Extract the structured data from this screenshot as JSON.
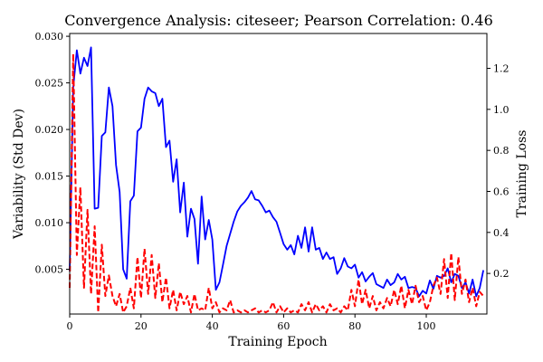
{
  "chart_data": {
    "type": "line",
    "title": "Convergence Analysis: citeseer; Pearson Correlation: 0.46",
    "xlabel": "Training Epoch",
    "ylabel_left": "Variability (Std Dev)",
    "ylabel_right": "Training Loss",
    "xlim": [
      0,
      117
    ],
    "ylim_left": [
      0.0002,
      0.0303
    ],
    "ylim_right": [
      0.002,
      1.37
    ],
    "x_ticks": [
      0,
      20,
      40,
      60,
      80,
      100
    ],
    "y_left_ticks": [
      0.005,
      0.01,
      0.015,
      0.02,
      0.025,
      0.03
    ],
    "y_right_ticks": [
      0.2,
      0.4,
      0.6,
      0.8,
      1.0,
      1.2
    ],
    "grid": false,
    "series": [
      {
        "axis": "left",
        "color": "#0000ff",
        "style": "solid",
        "x": [
          0,
          1,
          2,
          3,
          4,
          5,
          6,
          7,
          8,
          9,
          10,
          11,
          12,
          13,
          14,
          15,
          16,
          17,
          18,
          19,
          20,
          21,
          22,
          23,
          24,
          25,
          26,
          27,
          28,
          29,
          30,
          31,
          32,
          33,
          34,
          35,
          36,
          37,
          38,
          39,
          40,
          41,
          42,
          43,
          44,
          45,
          46,
          47,
          48,
          49,
          50,
          51,
          52,
          53,
          54,
          55,
          56,
          57,
          58,
          59,
          60,
          61,
          62,
          63,
          64,
          65,
          66,
          67,
          68,
          69,
          70,
          71,
          72,
          73,
          74,
          75,
          76,
          77,
          78,
          79,
          80,
          81,
          82,
          83,
          84,
          85,
          86,
          87,
          88,
          89,
          90,
          91,
          92,
          93,
          94,
          95,
          96,
          97,
          98,
          99,
          100,
          101,
          102,
          103,
          104,
          105,
          106,
          107,
          108,
          109,
          110,
          111,
          112,
          113,
          114,
          115,
          116
        ],
        "values": [
          0.0048,
          0.0245,
          0.0285,
          0.026,
          0.0277,
          0.0268,
          0.0288,
          0.0115,
          0.0116,
          0.0193,
          0.0197,
          0.0245,
          0.0225,
          0.0162,
          0.0133,
          0.005,
          0.004,
          0.0123,
          0.0129,
          0.0198,
          0.0202,
          0.0233,
          0.0245,
          0.0241,
          0.0239,
          0.0225,
          0.0233,
          0.0181,
          0.0188,
          0.0144,
          0.0168,
          0.0111,
          0.0143,
          0.0085,
          0.0115,
          0.0104,
          0.0056,
          0.0128,
          0.0082,
          0.0103,
          0.0082,
          0.0028,
          0.0036,
          0.0055,
          0.0075,
          0.0088,
          0.0101,
          0.0112,
          0.0118,
          0.0122,
          0.0127,
          0.0134,
          0.0125,
          0.0124,
          0.0118,
          0.0111,
          0.0113,
          0.0106,
          0.0101,
          0.0089,
          0.0077,
          0.0071,
          0.0076,
          0.0066,
          0.0086,
          0.0073,
          0.0095,
          0.0069,
          0.0095,
          0.0071,
          0.0073,
          0.0061,
          0.0068,
          0.0061,
          0.0063,
          0.0045,
          0.0051,
          0.0062,
          0.0053,
          0.0051,
          0.0055,
          0.0041,
          0.0047,
          0.0037,
          0.0042,
          0.0046,
          0.0034,
          0.0032,
          0.003,
          0.0039,
          0.0033,
          0.0036,
          0.0045,
          0.0039,
          0.0042,
          0.003,
          0.0031,
          0.003,
          0.0021,
          0.0027,
          0.0024,
          0.0038,
          0.0029,
          0.0043,
          0.0041,
          0.0043,
          0.0051,
          0.0036,
          0.0045,
          0.0043,
          0.003,
          0.0036,
          0.0024,
          0.0039,
          0.0021,
          0.003,
          0.0049
        ]
      },
      {
        "axis": "right",
        "color": "#ff0000",
        "style": "dashed",
        "x": [
          0,
          1,
          2,
          3,
          4,
          5,
          6,
          7,
          8,
          9,
          10,
          11,
          12,
          13,
          14,
          15,
          16,
          17,
          18,
          19,
          20,
          21,
          22,
          23,
          24,
          25,
          26,
          27,
          28,
          29,
          30,
          31,
          32,
          33,
          34,
          35,
          36,
          37,
          38,
          39,
          40,
          41,
          42,
          43,
          44,
          45,
          46,
          47,
          48,
          49,
          50,
          51,
          52,
          53,
          54,
          55,
          56,
          57,
          58,
          59,
          60,
          61,
          62,
          63,
          64,
          65,
          66,
          67,
          68,
          69,
          70,
          71,
          72,
          73,
          74,
          75,
          76,
          77,
          78,
          79,
          80,
          81,
          82,
          83,
          84,
          85,
          86,
          87,
          88,
          89,
          90,
          91,
          92,
          93,
          94,
          95,
          96,
          97,
          98,
          99,
          100,
          101,
          102,
          103,
          104,
          105,
          106,
          107,
          108,
          109,
          110,
          111,
          112,
          113,
          114,
          115,
          116
        ],
        "values": [
          0.13,
          1.27,
          0.29,
          0.62,
          0.13,
          0.51,
          0.1,
          0.43,
          0.01,
          0.34,
          0.09,
          0.19,
          0.09,
          0.04,
          0.1,
          0.01,
          0.04,
          0.13,
          0.03,
          0.28,
          0.08,
          0.32,
          0.1,
          0.29,
          0.08,
          0.25,
          0.06,
          0.18,
          0.03,
          0.12,
          0.02,
          0.11,
          0.05,
          0.09,
          0.01,
          0.1,
          0.02,
          0.03,
          0.02,
          0.13,
          0.03,
          0.06,
          0.01,
          0.03,
          0.02,
          0.07,
          0.01,
          0.02,
          0.01,
          0.02,
          0.01,
          0.02,
          0.03,
          0.01,
          0.02,
          0.01,
          0.02,
          0.06,
          0.01,
          0.04,
          0.01,
          0.03,
          0.01,
          0.02,
          0.01,
          0.05,
          0.02,
          0.06,
          0.01,
          0.05,
          0.02,
          0.04,
          0.01,
          0.05,
          0.02,
          0.03,
          0.01,
          0.04,
          0.02,
          0.12,
          0.04,
          0.17,
          0.05,
          0.12,
          0.03,
          0.09,
          0.02,
          0.06,
          0.03,
          0.08,
          0.04,
          0.12,
          0.05,
          0.14,
          0.03,
          0.12,
          0.05,
          0.14,
          0.06,
          0.09,
          0.02,
          0.06,
          0.14,
          0.18,
          0.1,
          0.27,
          0.08,
          0.3,
          0.07,
          0.28,
          0.1,
          0.17,
          0.06,
          0.13,
          0.04,
          0.11,
          0.09
        ]
      }
    ]
  }
}
